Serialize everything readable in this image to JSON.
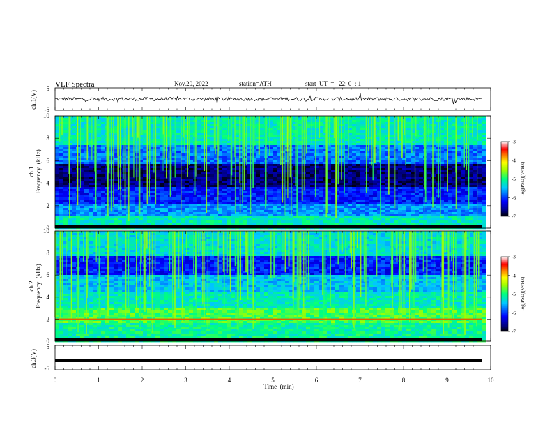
{
  "header": {
    "title": "VLF  Spectra",
    "date": "Nov.20, 2022",
    "station": "station=ATH",
    "start_ut": "start  UT  =   22: 0  : 1"
  },
  "chart_data": [
    {
      "type": "line",
      "panel": "ch1-waveform",
      "ylabel": "ch.1(V)",
      "yticks": [
        "5",
        "-5"
      ],
      "ylim": [
        -5,
        5
      ],
      "x": [
        0,
        9.8
      ],
      "values": [
        0.0,
        0.0
      ],
      "note_visible": "noisy trace near 0 V"
    },
    {
      "type": "heatmap",
      "panel": "ch1-spectrogram",
      "ylabel": "ch.1\nFrequency  (kHz)",
      "ylabel_lines": [
        "ch.1",
        "Frequency  (kHz)"
      ],
      "yticks": [
        "0",
        "2",
        "4",
        "6",
        "8",
        "10"
      ],
      "ylim": [
        0,
        10
      ],
      "xlim": [
        0,
        10
      ],
      "colorbar": {
        "label": "log(PSD)(V²/Hz)",
        "ticks": [
          "-3",
          "-4",
          "-5",
          "-6",
          "-7"
        ],
        "range": [
          -7,
          -3
        ]
      }
    },
    {
      "type": "heatmap",
      "panel": "ch2-spectrogram",
      "ylabel_lines": [
        "ch.2",
        "Frequency  (kHz)"
      ],
      "yticks": [
        "0",
        "2",
        "4",
        "6",
        "8",
        "10"
      ],
      "ylim": [
        0,
        10
      ],
      "xlim": [
        0,
        10
      ],
      "colorbar": {
        "label": "log(PSD)(V²/Hz)",
        "ticks": [
          "-3",
          "-4",
          "-5",
          "-6",
          "-7"
        ],
        "range": [
          -7,
          -3
        ]
      }
    },
    {
      "type": "line",
      "panel": "ch3-waveform",
      "ylabel": "ch.3(V)",
      "yticks": [
        "5",
        "-5"
      ],
      "ylim": [
        -5,
        5
      ],
      "x": [
        0,
        9.8
      ],
      "values": [
        -1.3,
        -1.3
      ]
    }
  ],
  "xaxis": {
    "label": "Time  (min)",
    "ticks": [
      "0",
      "1",
      "2",
      "3",
      "4",
      "5",
      "6",
      "7",
      "8",
      "9",
      "10"
    ],
    "xlim": [
      0,
      10
    ]
  },
  "colors": {
    "frame": "#000000",
    "trace": "#000000",
    "background": "#ffffff"
  }
}
